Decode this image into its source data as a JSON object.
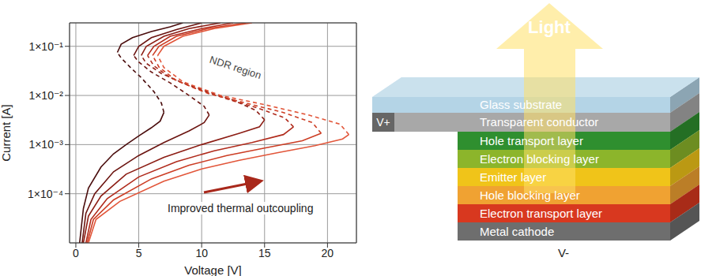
{
  "chart_data": {
    "type": "line",
    "x_label": "Voltage [V]",
    "y_label": "Current [A]",
    "log": "y",
    "grid": true,
    "xlim": [
      -0.5,
      22.3
    ],
    "ylim": [
      1e-05,
      0.3
    ],
    "xticks": [
      0,
      5,
      10,
      15,
      20
    ],
    "yticks": [
      {
        "value": 0.0001,
        "label": "1×10⁻⁴"
      },
      {
        "value": 0.001,
        "label": "1×10⁻³"
      },
      {
        "value": 0.01,
        "label": "1×10⁻²"
      },
      {
        "value": 0.1,
        "label": "1×10⁻¹"
      }
    ],
    "annotations": [
      "NDR region",
      "Improved thermal outcoupling"
    ],
    "series": [
      {
        "color": "#4a0d0d",
        "line_style": "solid",
        "x": [
          0.3,
          0.6,
          1,
          2,
          3,
          4,
          5,
          6,
          6.7,
          7.0
        ],
        "values": [
          1e-05,
          5e-05,
          0.00013,
          0.00035,
          0.00065,
          0.001,
          0.0015,
          0.0022,
          0.003,
          0.0045
        ]
      },
      {
        "color": "#4a0d0d",
        "line_style": "dashed",
        "x": [
          7.0,
          6.8,
          6.2,
          5.2,
          4.3,
          3.6,
          3.3
        ],
        "values": [
          0.0045,
          0.007,
          0.012,
          0.023,
          0.038,
          0.058,
          0.075
        ]
      },
      {
        "color": "#4a0d0d",
        "line_style": "solid",
        "x": [
          3.3,
          3.6,
          4.5,
          6,
          7.5,
          8.5
        ],
        "values": [
          0.075,
          0.11,
          0.15,
          0.2,
          0.25,
          0.3
        ]
      },
      {
        "color": "#6b1410",
        "line_style": "solid",
        "x": [
          0.5,
          0.8,
          1.5,
          3,
          5,
          7,
          9,
          10.2,
          10.6
        ],
        "values": [
          1e-05,
          4e-05,
          0.0001,
          0.00028,
          0.0006,
          0.0011,
          0.0019,
          0.0028,
          0.004
        ]
      },
      {
        "color": "#6b1410",
        "line_style": "dashed",
        "x": [
          10.6,
          10.2,
          9,
          7.5,
          6,
          5,
          4.6
        ],
        "values": [
          0.004,
          0.006,
          0.01,
          0.018,
          0.03,
          0.048,
          0.065
        ]
      },
      {
        "color": "#6b1410",
        "line_style": "solid",
        "x": [
          4.6,
          5,
          6,
          8,
          10
        ],
        "values": [
          0.065,
          0.1,
          0.15,
          0.22,
          0.3
        ]
      },
      {
        "color": "#8c1d14",
        "line_style": "solid",
        "x": [
          0.6,
          1,
          2,
          4,
          7,
          10,
          13,
          14.6,
          15
        ],
        "values": [
          1e-05,
          3.5e-05,
          9e-05,
          0.00025,
          0.00055,
          0.001,
          0.0017,
          0.0023,
          0.0032
        ]
      },
      {
        "color": "#8c1d14",
        "line_style": "dashed",
        "x": [
          15,
          14.3,
          12.5,
          10.5,
          8.5,
          6.8,
          5.6,
          5.2
        ],
        "values": [
          0.0032,
          0.005,
          0.008,
          0.012,
          0.018,
          0.028,
          0.045,
          0.065
        ]
      },
      {
        "color": "#8c1d14",
        "line_style": "solid",
        "x": [
          5.2,
          5.6,
          7,
          9,
          11.5
        ],
        "values": [
          0.065,
          0.1,
          0.16,
          0.23,
          0.3
        ]
      },
      {
        "color": "#b02b1c",
        "line_style": "solid",
        "x": [
          0.8,
          1.2,
          2.5,
          5,
          8,
          11,
          14,
          16.5,
          17.3
        ],
        "values": [
          1e-05,
          3e-05,
          8e-05,
          0.00022,
          0.00045,
          0.00075,
          0.0011,
          0.0016,
          0.0023
        ]
      },
      {
        "color": "#b02b1c",
        "line_style": "dashed",
        "x": [
          17.3,
          16.6,
          14.5,
          12,
          9.5,
          7.5,
          6.2,
          5.7
        ],
        "values": [
          0.0023,
          0.0035,
          0.0055,
          0.0085,
          0.014,
          0.023,
          0.04,
          0.065
        ]
      },
      {
        "color": "#b02b1c",
        "line_style": "solid",
        "x": [
          5.7,
          6.2,
          7.5,
          10,
          12.5
        ],
        "values": [
          0.065,
          0.1,
          0.16,
          0.23,
          0.3
        ]
      },
      {
        "color": "#cc3d24",
        "line_style": "solid",
        "x": [
          0.9,
          1.4,
          3,
          6,
          9,
          12,
          15,
          18,
          19.5
        ],
        "values": [
          1e-05,
          3e-05,
          7.5e-05,
          0.0002,
          0.00038,
          0.0006,
          0.00085,
          0.0012,
          0.0017
        ]
      },
      {
        "color": "#cc3d24",
        "line_style": "dashed",
        "x": [
          19.5,
          18.8,
          16.5,
          13.5,
          10.5,
          8,
          6.6,
          6.1
        ],
        "values": [
          0.0017,
          0.0028,
          0.0045,
          0.007,
          0.011,
          0.02,
          0.038,
          0.065
        ]
      },
      {
        "color": "#cc3d24",
        "line_style": "solid",
        "x": [
          6.1,
          6.6,
          8,
          10.5,
          13.5
        ],
        "values": [
          0.065,
          0.1,
          0.16,
          0.23,
          0.3
        ]
      },
      {
        "color": "#e2563a",
        "line_style": "solid",
        "x": [
          1,
          1.6,
          3.5,
          7,
          10,
          13,
          16,
          19,
          21.2,
          21.7
        ],
        "values": [
          1e-05,
          3e-05,
          7e-05,
          0.00018,
          0.00032,
          0.00048,
          0.00068,
          0.00095,
          0.0013,
          0.0016
        ]
      },
      {
        "color": "#e2563a",
        "line_style": "dashed",
        "x": [
          21.7,
          21,
          18.5,
          15,
          11.5,
          8.5,
          7,
          6.5
        ],
        "values": [
          0.0016,
          0.0026,
          0.004,
          0.0065,
          0.01,
          0.019,
          0.037,
          0.065
        ]
      },
      {
        "color": "#e2563a",
        "line_style": "solid",
        "x": [
          6.5,
          7,
          8.5,
          11,
          14
        ],
        "values": [
          0.065,
          0.1,
          0.16,
          0.23,
          0.3
        ]
      }
    ]
  },
  "diagram": {
    "arrow_label": "Light",
    "anode": "V+",
    "cathode": "V-",
    "layers": [
      {
        "label": "Glass substrate",
        "color": "#b4d4e6"
      },
      {
        "label": "Transparent conductor",
        "color": "#a8a8a8"
      },
      {
        "label": "Hole transport layer",
        "color": "#2f8f2f"
      },
      {
        "label": "Electron blocking layer",
        "color": "#8cb52b"
      },
      {
        "label": "Emitter layer",
        "color": "#f0c419"
      },
      {
        "label": "Hole blocking layer",
        "color": "#f0a232"
      },
      {
        "label": "Electron transport layer",
        "color": "#d8381f"
      },
      {
        "label": "Metal cathode",
        "color": "#6e6e6e"
      }
    ]
  }
}
